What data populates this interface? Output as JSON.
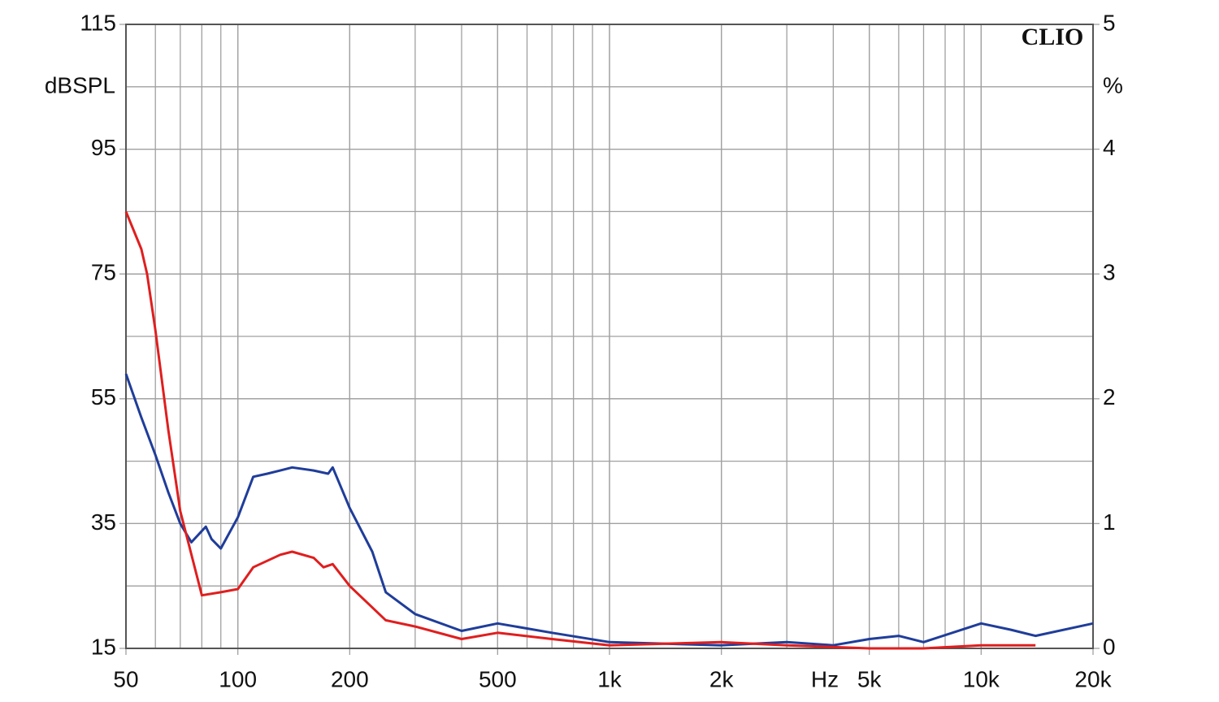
{
  "chart_data": {
    "type": "line",
    "annotations": [
      "CLIO",
      "Hz"
    ],
    "ylabel": "dBSPL",
    "y2label": "%",
    "xlog": true,
    "xlim": [
      50,
      20000
    ],
    "xticks": [
      50,
      100,
      200,
      500,
      {
        "value": 1000,
        "label": "1k"
      },
      {
        "value": 2000,
        "label": "2k"
      },
      {
        "value": 5000,
        "label": "5k"
      },
      {
        "value": 10000,
        "label": "10k"
      },
      {
        "value": 20000,
        "label": "20k"
      }
    ],
    "xgrid": [
      60,
      70,
      80,
      90,
      100,
      200,
      300,
      400,
      500,
      600,
      700,
      800,
      900,
      1000,
      2000,
      3000,
      4000,
      5000,
      6000,
      7000,
      8000,
      9000,
      10000
    ],
    "ylim": [
      15,
      115
    ],
    "yticks": [
      15,
      35,
      55,
      75,
      95,
      115
    ],
    "ygrid": [
      25,
      35,
      45,
      55,
      65,
      75,
      85,
      95,
      105
    ],
    "y2lim": [
      0,
      5
    ],
    "y2ticks": [
      0,
      1,
      2,
      3,
      4,
      5
    ],
    "grid": true,
    "series": [
      {
        "name": "blue",
        "color": "#1f3d9a",
        "x": [
          50,
          55,
          60,
          65,
          70,
          75,
          82,
          85,
          90,
          100,
          110,
          120,
          130,
          140,
          160,
          175,
          180,
          200,
          230,
          250,
          300,
          400,
          500,
          700,
          1000,
          2000,
          3000,
          4000,
          5000,
          6000,
          7000,
          10000,
          12000,
          14000,
          20000
        ],
        "values": [
          59,
          52,
          46,
          40,
          35,
          32,
          34.5,
          32.5,
          31,
          36,
          42.5,
          43,
          43.5,
          44,
          43.5,
          43,
          44,
          37.5,
          30.5,
          24,
          20.5,
          17.8,
          19,
          17.5,
          16,
          15.5,
          16,
          15.5,
          16.5,
          17,
          16,
          19,
          18,
          17,
          19
        ]
      },
      {
        "name": "red",
        "color": "#e01e1e",
        "x": [
          50,
          55,
          57,
          60,
          65,
          70,
          80,
          90,
          100,
          110,
          130,
          140,
          160,
          170,
          180,
          200,
          250,
          300,
          400,
          500,
          700,
          1000,
          2000,
          3000,
          5000,
          7000,
          10000,
          14000
        ],
        "values": [
          85,
          79,
          75,
          66,
          50,
          37,
          23.5,
          24,
          24.5,
          28,
          30,
          30.5,
          29.5,
          28,
          28.5,
          25,
          19.5,
          18.5,
          16.5,
          17.5,
          16.5,
          15.5,
          16,
          15.5,
          15,
          15,
          15.5,
          15.5
        ]
      }
    ]
  }
}
